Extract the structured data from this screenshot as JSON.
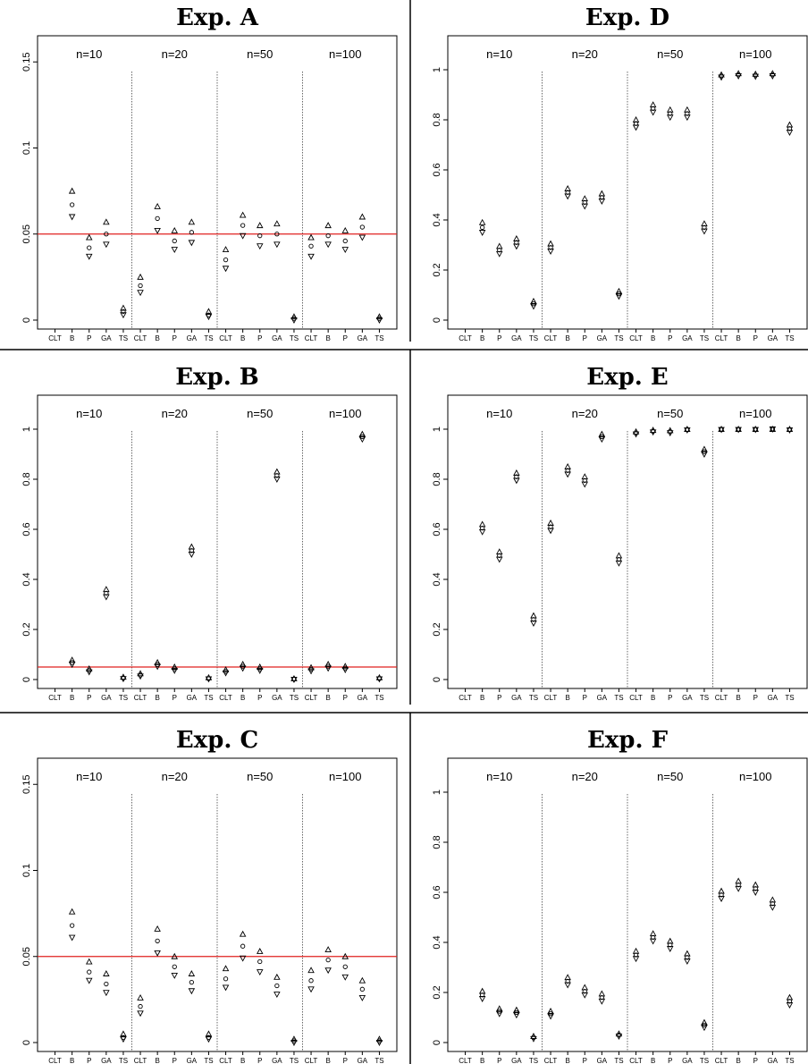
{
  "figure": {
    "method_labels": [
      "CLT",
      "B",
      "P",
      "GA",
      "TS"
    ],
    "sample_size_labels": [
      "n=10",
      "n=20",
      "n=50",
      "n=100"
    ],
    "reference_line_color": "#e0201f"
  },
  "chart_data": [
    {
      "type": "scatter",
      "title": "Exp. A",
      "xlabel": "",
      "ylabel": "",
      "ylim": [
        0,
        0.16
      ],
      "y_ticks": [
        0,
        0.05,
        0.1,
        0.15
      ],
      "y_tick_labels": [
        "0",
        "0.05",
        "0.1",
        "0.15"
      ],
      "reference_line": 0.05,
      "grid": false,
      "groups": [
        "n=10",
        "n=20",
        "n=50",
        "n=100"
      ],
      "categories": [
        "CLT",
        "B",
        "P",
        "GA",
        "TS"
      ],
      "series": [
        {
          "group": "n=10",
          "point": [
            null,
            0.067,
            0.042,
            0.05,
            0.005
          ],
          "upper": [
            null,
            0.075,
            0.048,
            0.057,
            0.007
          ],
          "lower": [
            null,
            0.06,
            0.037,
            0.044,
            0.003
          ]
        },
        {
          "group": "n=20",
          "point": [
            0.02,
            0.059,
            0.046,
            0.051,
            0.003
          ],
          "upper": [
            0.025,
            0.066,
            0.052,
            0.057,
            0.005
          ],
          "lower": [
            0.016,
            0.052,
            0.041,
            0.045,
            0.002
          ]
        },
        {
          "group": "n=50",
          "point": [
            0.035,
            0.055,
            0.049,
            0.05,
            0.001
          ],
          "upper": [
            0.041,
            0.061,
            0.055,
            0.056,
            0.002
          ],
          "lower": [
            0.03,
            0.049,
            0.043,
            0.044,
            0.0
          ]
        },
        {
          "group": "n=100",
          "point": [
            0.043,
            0.049,
            0.046,
            0.054,
            0.001
          ],
          "upper": [
            0.048,
            0.055,
            0.052,
            0.06,
            0.002
          ],
          "lower": [
            0.037,
            0.044,
            0.041,
            0.048,
            0.0
          ]
        }
      ]
    },
    {
      "type": "scatter",
      "title": "Exp. D",
      "xlabel": "",
      "ylabel": "",
      "ylim": [
        0,
        1.1
      ],
      "y_ticks": [
        0,
        0.2,
        0.4,
        0.6,
        0.8,
        1
      ],
      "y_tick_labels": [
        "0",
        "0.2",
        "0.4",
        "0.6",
        "0.8",
        "1"
      ],
      "reference_line": null,
      "grid": false,
      "groups": [
        "n=10",
        "n=20",
        "n=50",
        "n=100"
      ],
      "categories": [
        "CLT",
        "B",
        "P",
        "GA",
        "TS"
      ],
      "series": [
        {
          "group": "n=10",
          "point": [
            null,
            0.37,
            0.28,
            0.31,
            0.065
          ],
          "upper": [
            null,
            0.39,
            0.295,
            0.325,
            0.075
          ],
          "lower": [
            null,
            0.35,
            0.265,
            0.295,
            0.055
          ]
        },
        {
          "group": "n=20",
          "point": [
            0.29,
            0.51,
            0.47,
            0.49,
            0.105
          ],
          "upper": [
            0.305,
            0.525,
            0.485,
            0.505,
            0.115
          ],
          "lower": [
            0.275,
            0.495,
            0.455,
            0.475,
            0.095
          ]
        },
        {
          "group": "n=50",
          "point": [
            0.785,
            0.845,
            0.825,
            0.825,
            0.37
          ],
          "upper": [
            0.8,
            0.86,
            0.84,
            0.84,
            0.385
          ],
          "lower": [
            0.77,
            0.83,
            0.81,
            0.81,
            0.355
          ]
        },
        {
          "group": "n=100",
          "point": [
            0.975,
            0.98,
            0.978,
            0.98,
            0.765
          ],
          "upper": [
            0.98,
            0.985,
            0.983,
            0.985,
            0.78
          ],
          "lower": [
            0.97,
            0.975,
            0.973,
            0.975,
            0.75
          ]
        }
      ]
    },
    {
      "type": "scatter",
      "title": "Exp. B",
      "xlabel": "",
      "ylabel": "",
      "ylim": [
        0,
        1.1
      ],
      "y_ticks": [
        0,
        0.2,
        0.4,
        0.6,
        0.8,
        1
      ],
      "y_tick_labels": [
        "0",
        "0.2",
        "0.4",
        "0.6",
        "0.8",
        "1"
      ],
      "reference_line": 0.05,
      "grid": false,
      "groups": [
        "n=10",
        "n=20",
        "n=50",
        "n=100"
      ],
      "categories": [
        "CLT",
        "B",
        "P",
        "GA",
        "TS"
      ],
      "series": [
        {
          "group": "n=10",
          "point": [
            null,
            0.068,
            0.036,
            0.345,
            0.006
          ],
          "upper": [
            null,
            0.078,
            0.043,
            0.36,
            0.01
          ],
          "lower": [
            null,
            0.06,
            0.03,
            0.33,
            0.003
          ]
        },
        {
          "group": "n=20",
          "point": [
            0.018,
            0.06,
            0.043,
            0.515,
            0.004
          ],
          "upper": [
            0.024,
            0.068,
            0.05,
            0.53,
            0.008
          ],
          "lower": [
            0.013,
            0.052,
            0.036,
            0.5,
            0.002
          ]
        },
        {
          "group": "n=50",
          "point": [
            0.032,
            0.053,
            0.043,
            0.815,
            0.002
          ],
          "upper": [
            0.039,
            0.061,
            0.05,
            0.83,
            0.004
          ],
          "lower": [
            0.026,
            0.045,
            0.036,
            0.8,
            0.0
          ]
        },
        {
          "group": "n=100",
          "point": [
            0.041,
            0.053,
            0.046,
            0.97,
            0.004
          ],
          "upper": [
            0.048,
            0.061,
            0.053,
            0.98,
            0.008
          ],
          "lower": [
            0.034,
            0.045,
            0.039,
            0.96,
            0.002
          ]
        }
      ]
    },
    {
      "type": "scatter",
      "title": "Exp. E",
      "xlabel": "",
      "ylabel": "",
      "ylim": [
        0,
        1.1
      ],
      "y_ticks": [
        0,
        0.2,
        0.4,
        0.6,
        0.8,
        1
      ],
      "y_tick_labels": [
        "0",
        "0.2",
        "0.4",
        "0.6",
        "0.8",
        "1"
      ],
      "reference_line": null,
      "grid": false,
      "groups": [
        "n=10",
        "n=20",
        "n=50",
        "n=100"
      ],
      "categories": [
        "CLT",
        "B",
        "P",
        "GA",
        "TS"
      ],
      "series": [
        {
          "group": "n=10",
          "point": [
            null,
            0.605,
            0.495,
            0.81,
            0.24
          ],
          "upper": [
            null,
            0.62,
            0.51,
            0.825,
            0.255
          ],
          "lower": [
            null,
            0.59,
            0.48,
            0.795,
            0.225
          ]
        },
        {
          "group": "n=20",
          "point": [
            0.61,
            0.835,
            0.795,
            0.97,
            0.48
          ],
          "upper": [
            0.625,
            0.85,
            0.81,
            0.98,
            0.495
          ],
          "lower": [
            0.595,
            0.82,
            0.78,
            0.96,
            0.465
          ]
        },
        {
          "group": "n=50",
          "point": [
            0.985,
            0.992,
            0.99,
            0.998,
            0.91
          ],
          "upper": [
            0.99,
            0.996,
            0.995,
            1.0,
            0.92
          ],
          "lower": [
            0.98,
            0.988,
            0.985,
            0.996,
            0.9
          ]
        },
        {
          "group": "n=100",
          "point": [
            0.999,
            0.999,
            0.999,
            1.0,
            0.998
          ],
          "upper": [
            1.0,
            1.0,
            1.0,
            1.0,
            1.0
          ],
          "lower": [
            0.998,
            0.998,
            0.998,
            1.0,
            0.996
          ]
        }
      ]
    },
    {
      "type": "scatter",
      "title": "Exp. C",
      "xlabel": "",
      "ylabel": "",
      "ylim": [
        0,
        0.16
      ],
      "y_ticks": [
        0,
        0.05,
        0.1,
        0.15
      ],
      "y_tick_labels": [
        "0",
        "0.05",
        "0.1",
        "0.15"
      ],
      "reference_line": 0.05,
      "grid": false,
      "groups": [
        "n=10",
        "n=20",
        "n=50",
        "n=100"
      ],
      "categories": [
        "CLT",
        "B",
        "P",
        "GA",
        "TS"
      ],
      "series": [
        {
          "group": "n=10",
          "point": [
            null,
            0.068,
            0.041,
            0.034,
            0.003
          ],
          "upper": [
            null,
            0.076,
            0.047,
            0.04,
            0.005
          ],
          "lower": [
            null,
            0.061,
            0.036,
            0.029,
            0.002
          ]
        },
        {
          "group": "n=20",
          "point": [
            0.021,
            0.059,
            0.044,
            0.035,
            0.003
          ],
          "upper": [
            0.026,
            0.066,
            0.05,
            0.04,
            0.005
          ],
          "lower": [
            0.017,
            0.052,
            0.039,
            0.03,
            0.002
          ]
        },
        {
          "group": "n=50",
          "point": [
            0.037,
            0.056,
            0.047,
            0.033,
            0.001
          ],
          "upper": [
            0.043,
            0.063,
            0.053,
            0.038,
            0.002
          ],
          "lower": [
            0.032,
            0.049,
            0.041,
            0.028,
            0.0
          ]
        },
        {
          "group": "n=100",
          "point": [
            0.036,
            0.048,
            0.044,
            0.031,
            0.001
          ],
          "upper": [
            0.042,
            0.054,
            0.05,
            0.036,
            0.002
          ],
          "lower": [
            0.031,
            0.042,
            0.038,
            0.026,
            0.0
          ]
        }
      ]
    },
    {
      "type": "scatter",
      "title": "Exp. F",
      "xlabel": "",
      "ylabel": "",
      "ylim": [
        0,
        1.1
      ],
      "y_ticks": [
        0,
        0.2,
        0.4,
        0.6,
        0.8,
        1
      ],
      "y_tick_labels": [
        "0",
        "0.2",
        "0.4",
        "0.6",
        "0.8",
        "1"
      ],
      "reference_line": null,
      "grid": false,
      "groups": [
        "n=10",
        "n=20",
        "n=50",
        "n=100"
      ],
      "categories": [
        "CLT",
        "B",
        "P",
        "GA",
        "TS"
      ],
      "series": [
        {
          "group": "n=10",
          "point": [
            null,
            0.19,
            0.125,
            0.12,
            0.02
          ],
          "upper": [
            null,
            0.205,
            0.135,
            0.13,
            0.025
          ],
          "lower": [
            null,
            0.175,
            0.115,
            0.11,
            0.015
          ]
        },
        {
          "group": "n=20",
          "point": [
            0.115,
            0.245,
            0.205,
            0.18,
            0.03
          ],
          "upper": [
            0.125,
            0.26,
            0.22,
            0.195,
            0.035
          ],
          "lower": [
            0.105,
            0.23,
            0.19,
            0.165,
            0.025
          ]
        },
        {
          "group": "n=50",
          "point": [
            0.35,
            0.42,
            0.39,
            0.34,
            0.07
          ],
          "upper": [
            0.365,
            0.435,
            0.405,
            0.355,
            0.08
          ],
          "lower": [
            0.335,
            0.405,
            0.375,
            0.325,
            0.06
          ]
        },
        {
          "group": "n=100",
          "point": [
            0.59,
            0.63,
            0.615,
            0.555,
            0.165
          ],
          "upper": [
            0.605,
            0.645,
            0.63,
            0.57,
            0.18
          ],
          "lower": [
            0.575,
            0.615,
            0.6,
            0.54,
            0.15
          ]
        }
      ]
    }
  ]
}
